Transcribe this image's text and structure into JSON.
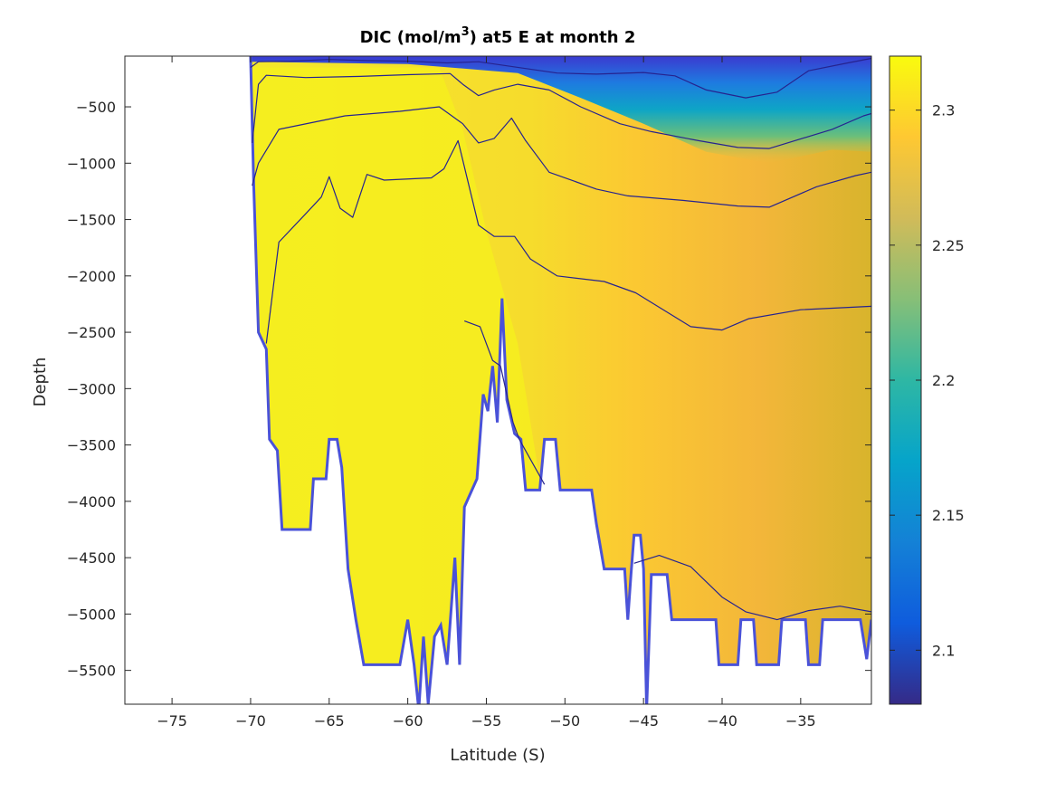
{
  "chart_data": {
    "type": "heatmap",
    "title": "DIC (mol/m",
    "title_sup": "3",
    "title_suffix": ") at5 E at month 2",
    "xlabel": "Latitude (S)",
    "ylabel": "Depth",
    "xlim": [
      -78,
      -30.5
    ],
    "ylim": [
      -5800,
      -50
    ],
    "xticks": [
      -75,
      -70,
      -65,
      -60,
      -55,
      -50,
      -45,
      -40,
      -35
    ],
    "yticks": [
      -500,
      -1000,
      -1500,
      -2000,
      -2500,
      -3000,
      -3500,
      -4000,
      -4500,
      -5000,
      -5500
    ],
    "colorbar": {
      "range": [
        2.08,
        2.32
      ],
      "ticks": [
        2.1,
        2.15,
        2.2,
        2.25,
        2.3
      ],
      "colors": [
        "#352a87",
        "#0f5cdd",
        "#1481d6",
        "#06a4ca",
        "#2eb7a4",
        "#87bf77",
        "#d1bb59",
        "#fec832",
        "#f9fb0e"
      ]
    },
    "bathymetry_depth_m": [
      [
        -70.0,
        -50
      ],
      [
        -69.8,
        -1200
      ],
      [
        -69.5,
        -2500
      ],
      [
        -69.0,
        -2650
      ],
      [
        -68.8,
        -3450
      ],
      [
        -68.3,
        -3550
      ],
      [
        -68.0,
        -4250
      ],
      [
        -66.2,
        -4250
      ],
      [
        -66.0,
        -3800
      ],
      [
        -65.2,
        -3800
      ],
      [
        -65.0,
        -3450
      ],
      [
        -64.5,
        -3450
      ],
      [
        -64.2,
        -3700
      ],
      [
        -63.8,
        -4600
      ],
      [
        -63.3,
        -5050
      ],
      [
        -62.8,
        -5450
      ],
      [
        -60.5,
        -5450
      ],
      [
        -60.0,
        -5050
      ],
      [
        -59.6,
        -5450
      ],
      [
        -59.3,
        -5850
      ],
      [
        -59.0,
        -5200
      ],
      [
        -58.7,
        -5800
      ],
      [
        -58.3,
        -5200
      ],
      [
        -57.9,
        -5100
      ],
      [
        -57.5,
        -5450
      ],
      [
        -57.0,
        -4500
      ],
      [
        -56.7,
        -5450
      ],
      [
        -56.4,
        -4050
      ],
      [
        -55.6,
        -3800
      ],
      [
        -55.2,
        -3050
      ],
      [
        -54.9,
        -3200
      ],
      [
        -54.6,
        -2800
      ],
      [
        -54.3,
        -3300
      ],
      [
        -54.0,
        -2200
      ],
      [
        -53.7,
        -3100
      ],
      [
        -53.2,
        -3400
      ],
      [
        -52.8,
        -3450
      ],
      [
        -52.5,
        -3900
      ],
      [
        -51.6,
        -3900
      ],
      [
        -51.3,
        -3450
      ],
      [
        -50.6,
        -3450
      ],
      [
        -50.3,
        -3900
      ],
      [
        -48.3,
        -3900
      ],
      [
        -48.0,
        -4200
      ],
      [
        -47.5,
        -4600
      ],
      [
        -46.2,
        -4600
      ],
      [
        -46.0,
        -5050
      ],
      [
        -45.8,
        -4650
      ],
      [
        -45.6,
        -4300
      ],
      [
        -45.2,
        -4300
      ],
      [
        -45.0,
        -4600
      ],
      [
        -44.8,
        -5850
      ],
      [
        -44.5,
        -4650
      ],
      [
        -43.5,
        -4650
      ],
      [
        -43.2,
        -5050
      ],
      [
        -40.4,
        -5050
      ],
      [
        -40.2,
        -5450
      ],
      [
        -39.0,
        -5450
      ],
      [
        -38.8,
        -5050
      ],
      [
        -38.0,
        -5050
      ],
      [
        -37.8,
        -5450
      ],
      [
        -36.4,
        -5450
      ],
      [
        -36.2,
        -5050
      ],
      [
        -34.7,
        -5050
      ],
      [
        -34.5,
        -5450
      ],
      [
        -33.8,
        -5450
      ],
      [
        -33.6,
        -5050
      ],
      [
        -31.2,
        -5050
      ],
      [
        -30.8,
        -5400
      ],
      [
        -30.5,
        -5050
      ]
    ],
    "contours": [
      [
        [
          -70.0,
          -150
        ],
        [
          -69.5,
          -100
        ],
        [
          -67.5,
          -95
        ],
        [
          -65.0,
          -80
        ],
        [
          -62.5,
          -90
        ],
        [
          -60.0,
          -95
        ],
        [
          -57.5,
          -110
        ],
        [
          -55.5,
          -100
        ],
        [
          -53.5,
          -140
        ],
        [
          -50.5,
          -200
        ],
        [
          -48.0,
          -210
        ],
        [
          -45.0,
          -195
        ],
        [
          -43.0,
          -225
        ],
        [
          -41.0,
          -350
        ],
        [
          -38.5,
          -420
        ],
        [
          -36.5,
          -370
        ],
        [
          -34.5,
          -180
        ],
        [
          -32.0,
          -110
        ],
        [
          -30.5,
          -70
        ]
      ],
      [
        [
          -69.9,
          -820
        ],
        [
          -69.5,
          -300
        ],
        [
          -69.0,
          -220
        ],
        [
          -66.5,
          -240
        ],
        [
          -63.0,
          -230
        ],
        [
          -60.0,
          -215
        ],
        [
          -57.3,
          -205
        ],
        [
          -56.5,
          -300
        ],
        [
          -55.5,
          -400
        ],
        [
          -54.5,
          -350
        ],
        [
          -53.0,
          -300
        ],
        [
          -51.0,
          -350
        ],
        [
          -49.0,
          -500
        ],
        [
          -46.5,
          -650
        ],
        [
          -44.5,
          -720
        ],
        [
          -41.5,
          -800
        ],
        [
          -39.0,
          -860
        ],
        [
          -37.0,
          -870
        ],
        [
          -33.0,
          -700
        ],
        [
          -31.0,
          -580
        ],
        [
          -30.5,
          -560
        ]
      ],
      [
        [
          -69.9,
          -1200
        ],
        [
          -69.5,
          -1000
        ],
        [
          -68.2,
          -700
        ],
        [
          -64.0,
          -580
        ],
        [
          -60.5,
          -540
        ],
        [
          -58.0,
          -500
        ],
        [
          -56.5,
          -650
        ],
        [
          -55.5,
          -820
        ],
        [
          -54.5,
          -780
        ],
        [
          -53.4,
          -600
        ],
        [
          -52.5,
          -800
        ],
        [
          -51.0,
          -1080
        ],
        [
          -48.0,
          -1230
        ],
        [
          -46.0,
          -1290
        ],
        [
          -42.5,
          -1330
        ],
        [
          -39.0,
          -1380
        ],
        [
          -37.0,
          -1390
        ],
        [
          -34.0,
          -1210
        ],
        [
          -31.5,
          -1110
        ],
        [
          -30.5,
          -1080
        ]
      ],
      [
        [
          -69.0,
          -2600
        ],
        [
          -68.2,
          -1700
        ],
        [
          -66.5,
          -1450
        ],
        [
          -65.5,
          -1300
        ],
        [
          -65.0,
          -1120
        ],
        [
          -64.3,
          -1400
        ],
        [
          -63.5,
          -1480
        ],
        [
          -62.6,
          -1100
        ],
        [
          -61.5,
          -1150
        ],
        [
          -58.5,
          -1130
        ],
        [
          -57.7,
          -1050
        ],
        [
          -56.8,
          -800
        ],
        [
          -55.5,
          -1550
        ],
        [
          -54.5,
          -1650
        ],
        [
          -53.2,
          -1650
        ],
        [
          -52.2,
          -1850
        ],
        [
          -50.5,
          -2000
        ],
        [
          -47.5,
          -2050
        ],
        [
          -45.5,
          -2150
        ],
        [
          -42.0,
          -2450
        ],
        [
          -40.0,
          -2480
        ],
        [
          -38.3,
          -2380
        ],
        [
          -35.0,
          -2300
        ],
        [
          -30.5,
          -2270
        ]
      ],
      [
        [
          -56.4,
          -2400
        ],
        [
          -55.4,
          -2450
        ],
        [
          -54.6,
          -2750
        ],
        [
          -54.1,
          -2800
        ],
        [
          -53.3,
          -3300
        ],
        [
          -52.9,
          -3450
        ],
        [
          -51.3,
          -3850
        ]
      ],
      [
        [
          -45.6,
          -4550
        ],
        [
          -44.0,
          -4480
        ],
        [
          -42.0,
          -4580
        ],
        [
          -40.0,
          -4850
        ],
        [
          -38.5,
          -4980
        ],
        [
          -36.5,
          -5050
        ],
        [
          -34.5,
          -4970
        ],
        [
          -32.5,
          -4930
        ],
        [
          -30.5,
          -4980
        ]
      ]
    ]
  }
}
